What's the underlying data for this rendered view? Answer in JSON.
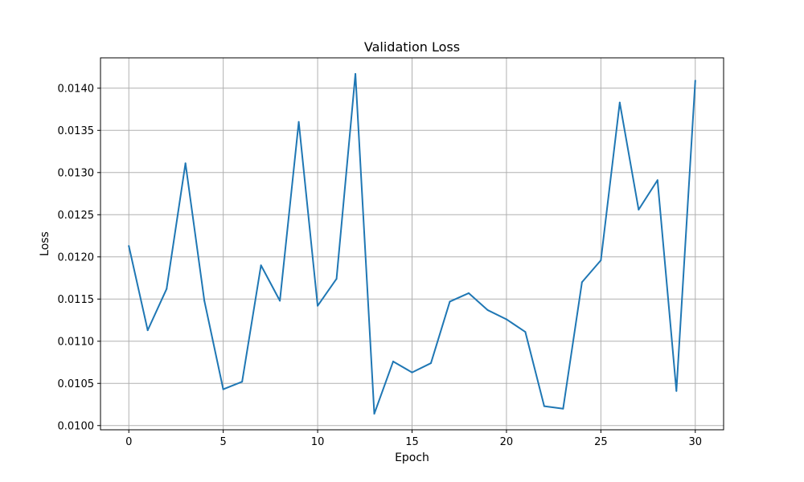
{
  "chart_data": {
    "type": "line",
    "title": "Validation Loss",
    "xlabel": "Epoch",
    "ylabel": "Loss",
    "xlim": [
      -1.5,
      31.5
    ],
    "ylim": [
      0.00995,
      0.01436
    ],
    "xticks": [
      0,
      5,
      10,
      15,
      20,
      25,
      30
    ],
    "xtick_labels": [
      "0",
      "5",
      "10",
      "15",
      "20",
      "25",
      "30"
    ],
    "yticks": [
      0.01,
      0.0105,
      0.011,
      0.0115,
      0.012,
      0.0125,
      0.013,
      0.0135,
      0.014
    ],
    "ytick_labels": [
      "0.0100",
      "0.0105",
      "0.0110",
      "0.0115",
      "0.0120",
      "0.0125",
      "0.0130",
      "0.0135",
      "0.0140"
    ],
    "grid": true,
    "line_color": "#1f77b4",
    "grid_color": "#b0b0b0",
    "series": [
      {
        "x": [
          0,
          1,
          2,
          3,
          4,
          5,
          6,
          7,
          8,
          9,
          10,
          11,
          12,
          13,
          14,
          15,
          16,
          17,
          18,
          19,
          20,
          21,
          22,
          23,
          24,
          25,
          26,
          27,
          28,
          29,
          30
        ],
        "values": [
          0.01213,
          0.01113,
          0.01162,
          0.01311,
          0.01148,
          0.01043,
          0.01052,
          0.0119,
          0.01148,
          0.0136,
          0.01142,
          0.01174,
          0.01417,
          0.01014,
          0.01076,
          0.01063,
          0.01074,
          0.01147,
          0.01157,
          0.01137,
          0.01126,
          0.01111,
          0.01023,
          0.0102,
          0.0117,
          0.01196,
          0.01383,
          0.01256,
          0.01291,
          0.01041,
          0.01409
        ]
      }
    ]
  }
}
